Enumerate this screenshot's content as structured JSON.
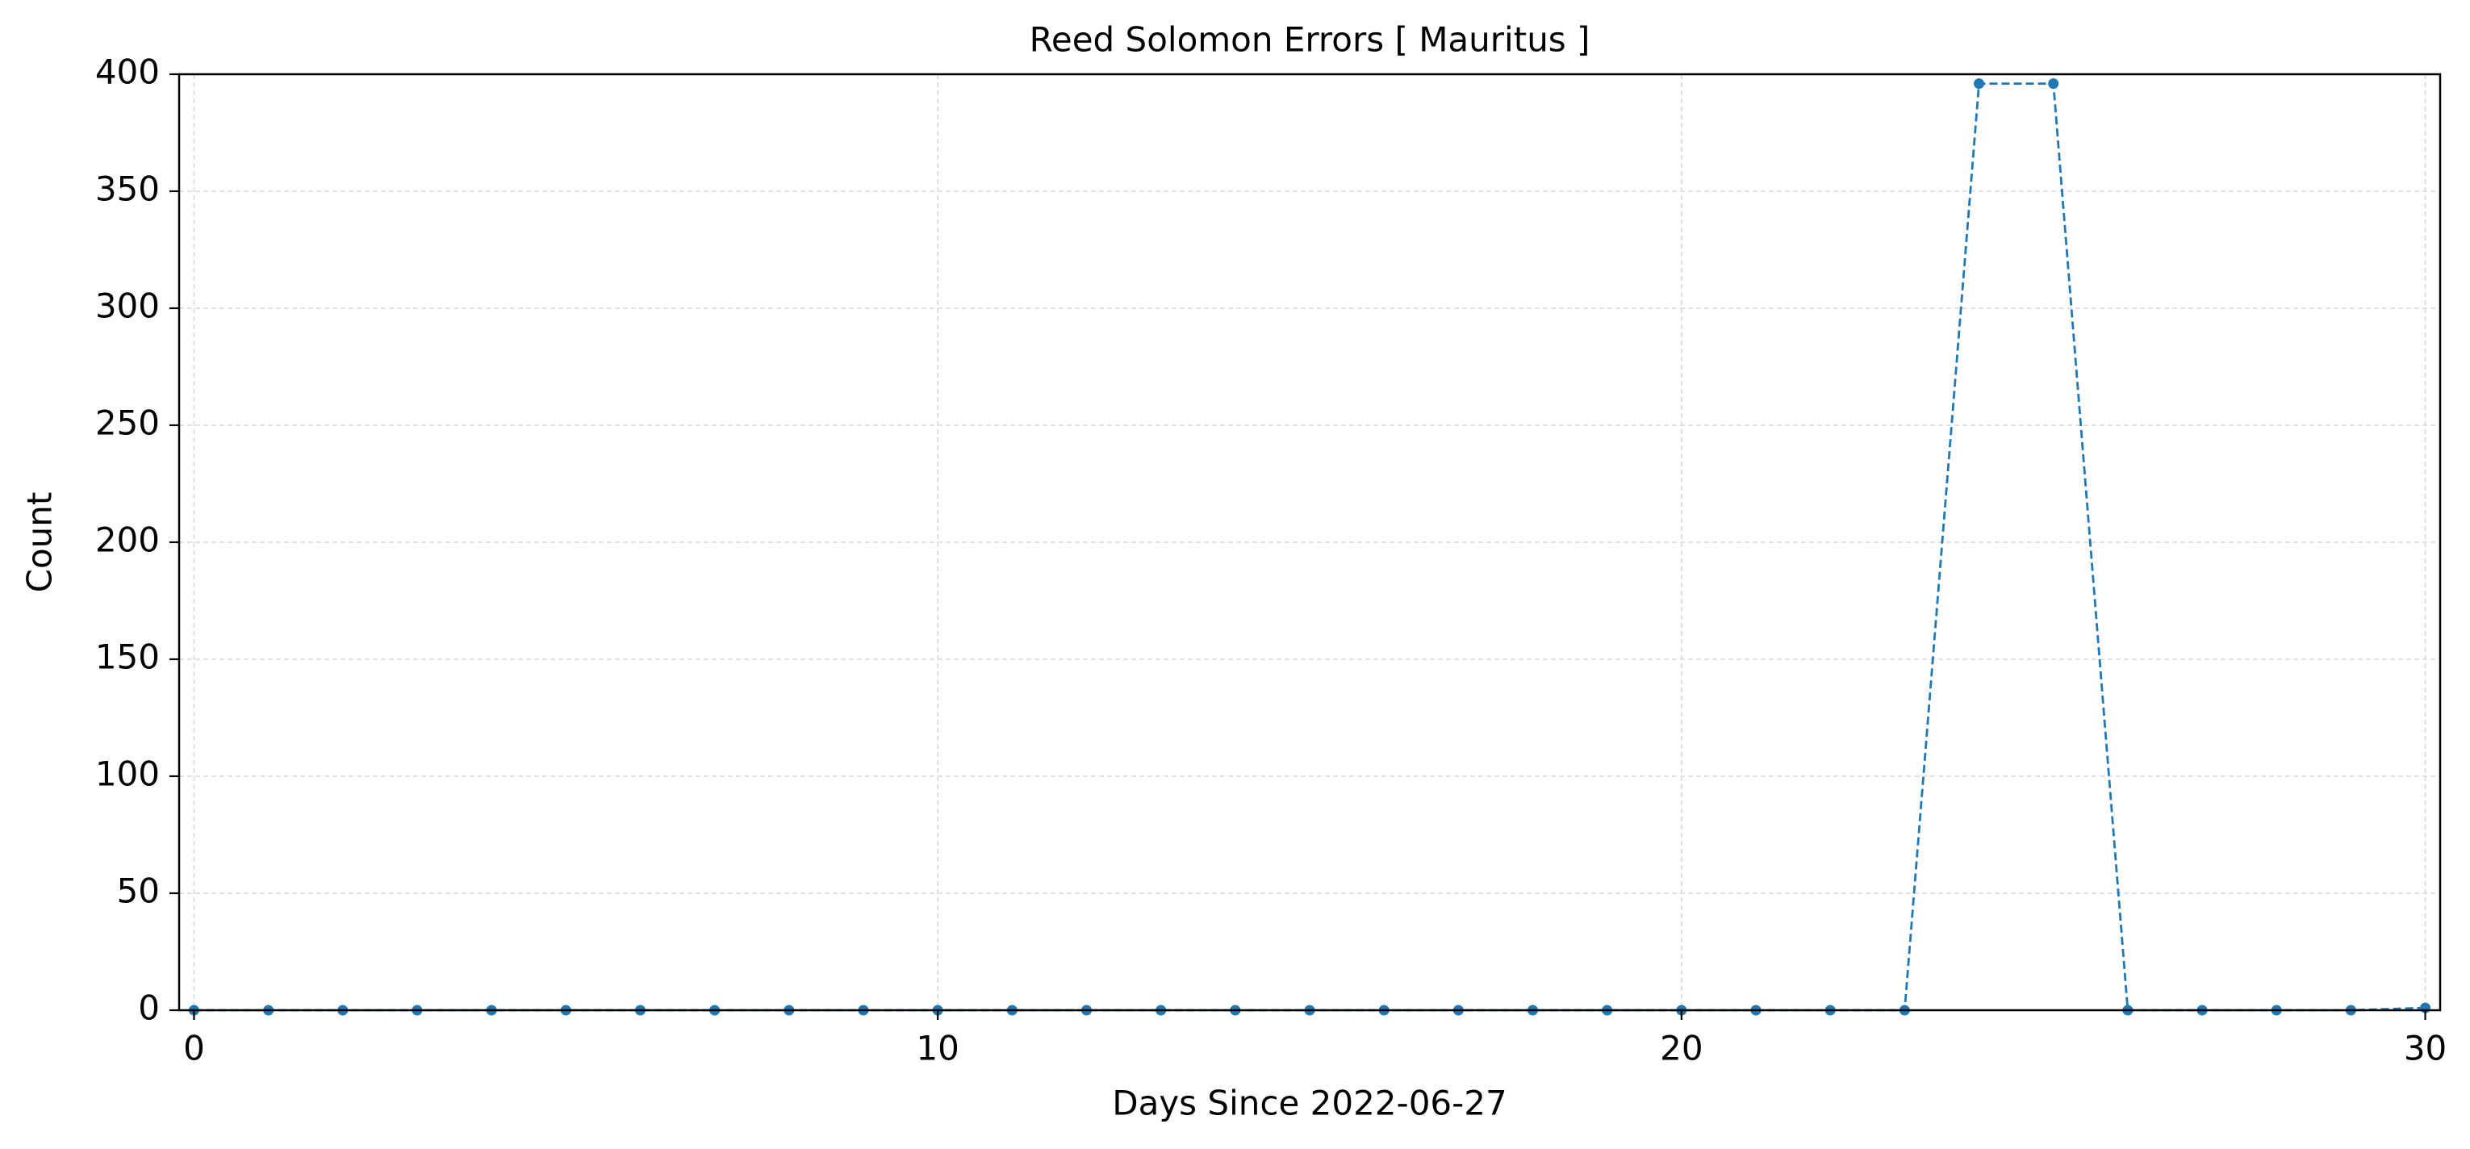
{
  "chart_data": {
    "type": "line",
    "title": "Reed Solomon Errors [ Mauritus ]",
    "xlabel": "Days Since 2022-06-27",
    "ylabel": "Count",
    "xlim": [
      -0.2,
      30.2
    ],
    "ylim": [
      0,
      400
    ],
    "xticks": [
      0,
      10,
      20,
      30
    ],
    "yticks": [
      0,
      50,
      100,
      150,
      200,
      250,
      300,
      350,
      400
    ],
    "grid": true,
    "series": [
      {
        "color": "#1f77b4",
        "line_style": "dashed",
        "marker": "circle",
        "x": [
          0,
          1,
          2,
          3,
          4,
          5,
          6,
          7,
          8,
          9,
          10,
          11,
          12,
          13,
          14,
          15,
          16,
          17,
          18,
          19,
          20,
          21,
          22,
          23,
          24,
          25,
          26,
          27,
          28,
          29,
          30
        ],
        "values": [
          0,
          0,
          0,
          0,
          0,
          0,
          0,
          0,
          0,
          0,
          0,
          0,
          0,
          0,
          0,
          0,
          0,
          0,
          0,
          0,
          0,
          0,
          0,
          0,
          396,
          396,
          0,
          0,
          0,
          0,
          1
        ]
      }
    ]
  }
}
